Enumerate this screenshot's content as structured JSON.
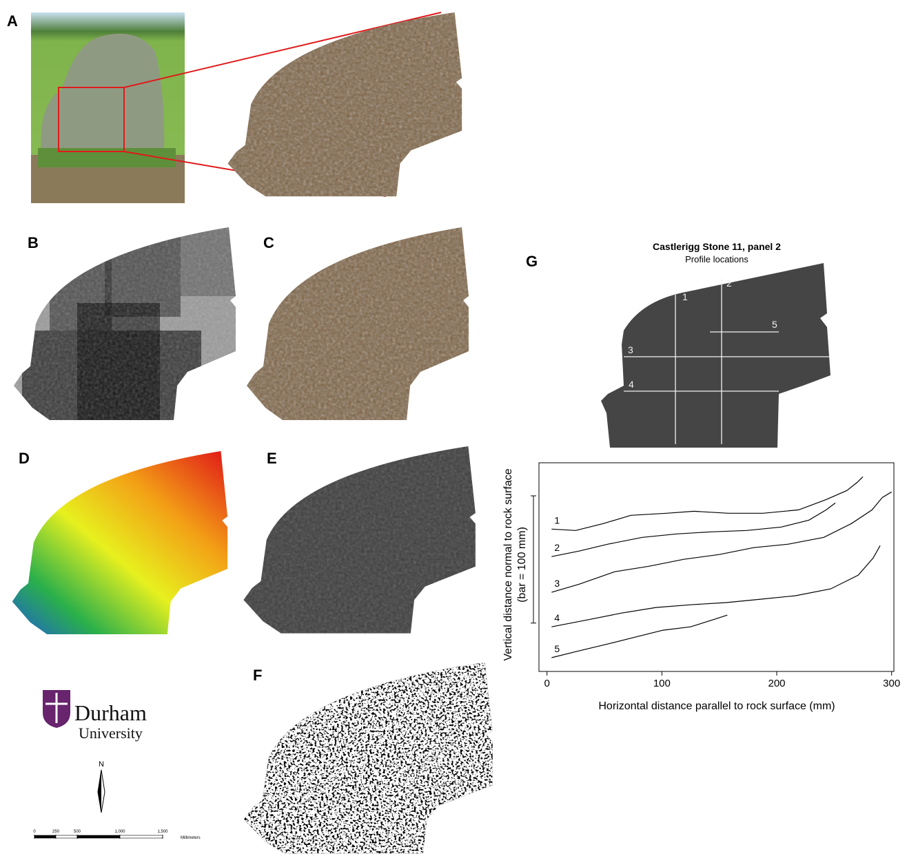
{
  "panels": {
    "labels": [
      "A",
      "B",
      "C",
      "D",
      "E",
      "F",
      "G"
    ]
  },
  "logo": {
    "name": "Durham",
    "subtitle": "University"
  },
  "north_arrow": {
    "label": "N"
  },
  "map_scale": {
    "ticks": [
      0,
      250,
      500,
      {
        "value": 1000,
        "label": "1,000"
      },
      {
        "value": 1500,
        "label": "1,500"
      }
    ],
    "unit": "Millimeters"
  },
  "profile_map": {
    "title": "Castlerigg Stone 11, panel 2",
    "subtitle": "Profile locations",
    "profiles": [
      "1",
      "2",
      "3",
      "4",
      "5"
    ]
  },
  "chart_data": {
    "type": "line",
    "x_label": "Horizontal distance parallel to rock surface (mm)",
    "y_label": "Vertical distance normal to rock surface",
    "y_label_note": "(bar = 100 mm)",
    "y_scale_bar": [
      38,
      138
    ],
    "xlim": [
      -7,
      302
    ],
    "xticks": [
      0,
      100,
      200,
      300
    ],
    "ylim": [
      0,
      164
    ],
    "series": [
      {
        "name": "1",
        "color": "#000000",
        "x": [
          4,
          25,
          49,
          73,
          104,
          128,
          158,
          188,
          219,
          243,
          261,
          270,
          275
        ],
        "values": [
          111.9,
          110.8,
          116.2,
          122.7,
          124.3,
          125.9,
          124.3,
          124.3,
          127.0,
          135.1,
          142.2,
          148.6,
          153.0
        ]
      },
      {
        "name": "2",
        "color": "#000000",
        "x": [
          4,
          28,
          53,
          83,
          113,
          143,
          174,
          204,
          228,
          243,
          251
        ],
        "values": [
          90.3,
          94.6,
          100.0,
          105.4,
          108.1,
          109.7,
          110.8,
          113.5,
          118.9,
          127.0,
          132.4
        ]
      },
      {
        "name": "3",
        "color": "#000000",
        "x": [
          4,
          28,
          59,
          89,
          119,
          150,
          180,
          210,
          241,
          265,
          283,
          292,
          300
        ],
        "values": [
          62.2,
          68.6,
          78.4,
          82.7,
          88.1,
          91.9,
          97.3,
          100.0,
          105.4,
          116.2,
          127.0,
          136.8,
          141.1
        ]
      },
      {
        "name": "4",
        "color": "#000000",
        "x": [
          4,
          35,
          65,
          95,
          125,
          156,
          186,
          216,
          247,
          271,
          284,
          290
        ],
        "values": [
          35.1,
          40.5,
          45.9,
          50.3,
          52.4,
          54.1,
          56.8,
          59.5,
          64.9,
          75.7,
          89.2,
          98.9
        ]
      },
      {
        "name": "5",
        "color": "#000000",
        "x": [
          4,
          28,
          53,
          77,
          101,
          125,
          144,
          157
        ],
        "values": [
          10.8,
          16.2,
          21.6,
          27.0,
          32.4,
          35.1,
          40.5,
          44.3
        ]
      }
    ]
  }
}
